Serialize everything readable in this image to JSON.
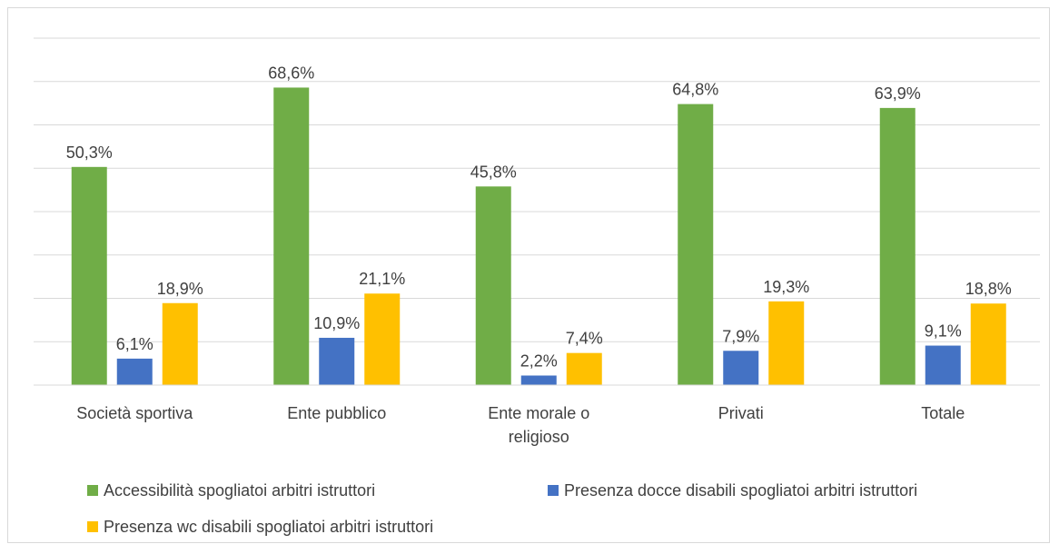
{
  "chart_data": {
    "type": "bar",
    "categories": [
      "Società sportiva",
      "Ente pubblico",
      "Ente morale o religioso",
      "Privati",
      "Totale"
    ],
    "series": [
      {
        "name": "Accessibilità spogliatoi arbitri istruttori",
        "color": "#70ad47",
        "values": [
          50.3,
          68.6,
          45.8,
          64.8,
          63.9
        ],
        "value_labels": [
          "50,3%",
          "68,6%",
          "45,8%",
          "64,8%",
          "63,9%"
        ]
      },
      {
        "name": "Presenza docce disabili spogliatoi arbitri istruttori",
        "color": "#4472c4",
        "values": [
          6.1,
          10.9,
          2.2,
          7.9,
          9.1
        ],
        "value_labels": [
          "6,1%",
          "10,9%",
          "2,2%",
          "7,9%",
          "9,1%"
        ]
      },
      {
        "name": "Presenza wc disabili spogliatoi arbitri istruttori",
        "color": "#ffc000",
        "values": [
          18.9,
          21.1,
          7.4,
          19.3,
          18.8
        ],
        "value_labels": [
          "18,9%",
          "21,1%",
          "7,4%",
          "19,3%",
          "18,8%"
        ]
      }
    ],
    "ylim": [
      0,
      80
    ],
    "yticks": [
      0,
      10,
      20,
      30,
      40,
      50,
      60,
      70,
      80
    ],
    "grid": true,
    "legend": "bottom"
  }
}
